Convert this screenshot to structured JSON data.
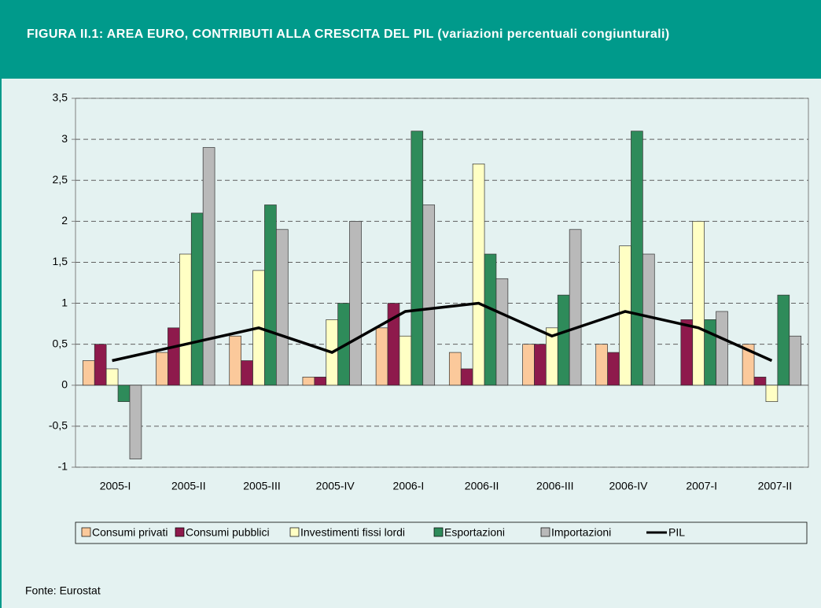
{
  "chart_data": {
    "type": "bar",
    "title": "FIGURA II.1: AREA EURO, CONTRIBUTI ALLA CRESCITA DEL PIL (variazioni percentuali congiunturali)",
    "source": "Fonte: Eurostat",
    "categories": [
      "2005-I",
      "2005-II",
      "2005-III",
      "2005-IV",
      "2006-I",
      "2006-II",
      "2006-III",
      "2006-IV",
      "2007-I",
      "2007-II"
    ],
    "series": [
      {
        "name": "Consumi privati",
        "color": "#fbc99b",
        "type": "bar",
        "values": [
          0.3,
          0.4,
          0.6,
          0.1,
          0.7,
          0.4,
          0.5,
          0.5,
          0,
          0.5
        ]
      },
      {
        "name": "Consumi pubblici",
        "color": "#8e1a4c",
        "type": "bar",
        "values": [
          0.5,
          0.7,
          0.3,
          0.1,
          1.0,
          0.2,
          0.5,
          0.4,
          0.8,
          0.1
        ]
      },
      {
        "name": "Investimenti fissi lordi",
        "color": "#ffffc4",
        "type": "bar",
        "values": [
          0.2,
          1.6,
          1.4,
          0.8,
          0.6,
          2.7,
          0.7,
          1.7,
          2.0,
          -0.2
        ]
      },
      {
        "name": "Esportazioni",
        "color": "#2e8b5a",
        "type": "bar",
        "values": [
          -0.2,
          2.1,
          2.2,
          1.0,
          3.1,
          1.6,
          1.1,
          3.1,
          0.8,
          1.1
        ]
      },
      {
        "name": "Importazioni",
        "color": "#b9b9b9",
        "type": "bar",
        "values": [
          -0.9,
          2.9,
          1.9,
          2.0,
          2.2,
          1.3,
          1.9,
          1.6,
          0.9,
          0.6
        ]
      },
      {
        "name": "PIL",
        "color": "#000000",
        "type": "line",
        "values": [
          0.3,
          0.5,
          0.7,
          0.4,
          0.9,
          1.0,
          0.6,
          0.9,
          0.7,
          0.3
        ]
      }
    ],
    "ylim": [
      -1,
      3.5
    ],
    "yticks": [
      -1,
      {
        "value": -0.5,
        "label": "-0,5"
      },
      0,
      {
        "value": 0.5,
        "label": "0,5"
      },
      1,
      {
        "value": 1.5,
        "label": "1,5"
      },
      2,
      {
        "value": 2.5,
        "label": "2,5"
      },
      3,
      {
        "value": 3.5,
        "label": "3,5"
      }
    ],
    "grid": true
  }
}
